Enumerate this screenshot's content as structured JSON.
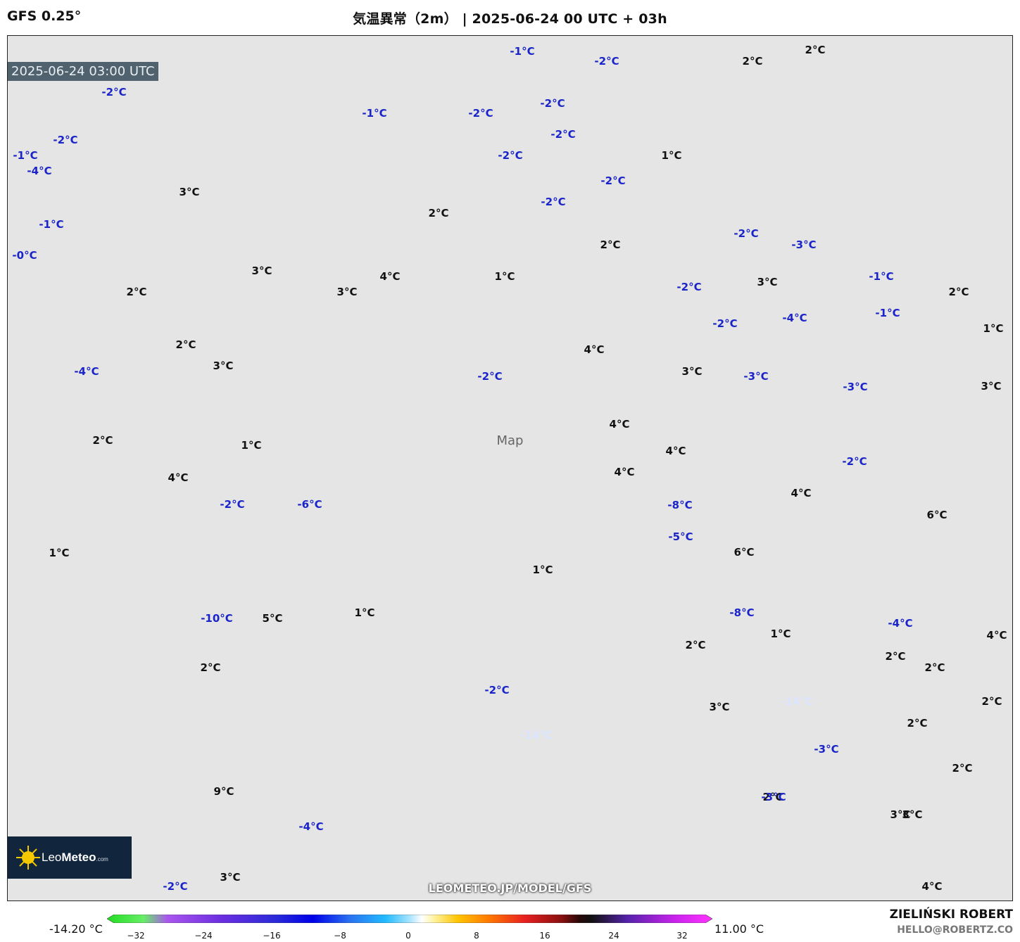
{
  "header": {
    "model": "GFS 0.25°",
    "title": "気温異常（2m） | 2025-06-24 00 UTC + 03h"
  },
  "map": {
    "valid_time": "2025-06-24 03:00 UTC",
    "placeholder": "Map",
    "labels": [
      {
        "text": "-1°C"
      },
      {
        "text": "-2°C"
      },
      {
        "text": "2°C"
      },
      {
        "text": "2°C"
      },
      {
        "text": "-2°C"
      },
      {
        "text": "-1°C"
      },
      {
        "text": "-2°C"
      },
      {
        "text": "-2°C"
      },
      {
        "text": "-2°C"
      },
      {
        "text": "-2°C"
      },
      {
        "text": "1°C"
      },
      {
        "text": "-1°C"
      },
      {
        "text": "-4°C"
      },
      {
        "text": "-2°C"
      },
      {
        "text": "-2°C"
      },
      {
        "text": "3°C"
      },
      {
        "text": "-1°C"
      },
      {
        "text": "2°C"
      },
      {
        "text": "-2°C"
      },
      {
        "text": "-0°C"
      },
      {
        "text": "2°C"
      },
      {
        "text": "-3°C"
      },
      {
        "text": "-2°C"
      },
      {
        "text": "2°C"
      },
      {
        "text": "3°C"
      },
      {
        "text": "4°C"
      },
      {
        "text": "1°C"
      },
      {
        "text": "-1°C"
      },
      {
        "text": "3°C"
      },
      {
        "text": "-2°C"
      },
      {
        "text": "2°C"
      },
      {
        "text": "3°C"
      },
      {
        "text": "1°C"
      },
      {
        "text": "-1°C"
      },
      {
        "text": "-2°C"
      },
      {
        "text": "-4°C"
      },
      {
        "text": "2°C"
      },
      {
        "text": "3°C"
      },
      {
        "text": "4°C"
      },
      {
        "text": "3°C"
      },
      {
        "text": "3°C"
      },
      {
        "text": "-4°C"
      },
      {
        "text": "-2°C"
      },
      {
        "text": "-3°C"
      },
      {
        "text": "-3°C"
      },
      {
        "text": "1°C"
      },
      {
        "text": "4°C"
      },
      {
        "text": "2°C"
      },
      {
        "text": "4°C"
      },
      {
        "text": "-2°C"
      },
      {
        "text": "4°C"
      },
      {
        "text": "4°C"
      },
      {
        "text": "4°C"
      },
      {
        "text": "-2°C"
      },
      {
        "text": "-6°C"
      },
      {
        "text": "-8°C"
      },
      {
        "text": "6°C"
      },
      {
        "text": "1°C"
      },
      {
        "text": "-5°C"
      },
      {
        "text": "6°C"
      },
      {
        "text": "1°C"
      },
      {
        "text": "1°C"
      },
      {
        "text": "-8°C"
      },
      {
        "text": "-10°C"
      },
      {
        "text": "5°C"
      },
      {
        "text": "-4°C"
      },
      {
        "text": "4°C"
      },
      {
        "text": "2°C"
      },
      {
        "text": "2°C"
      },
      {
        "text": "1°C"
      },
      {
        "text": "2°C"
      },
      {
        "text": "2°C"
      },
      {
        "text": "-2°C"
      },
      {
        "text": "2°C"
      },
      {
        "text": "-14°C"
      },
      {
        "text": "3°C"
      },
      {
        "text": "2°C"
      },
      {
        "text": "-3°C"
      },
      {
        "text": "2°C"
      },
      {
        "text": "-14°C"
      },
      {
        "text": "3°C"
      },
      {
        "text": "2°C"
      },
      {
        "text": "9°C"
      },
      {
        "text": "-3°C"
      },
      {
        "text": "3°C"
      },
      {
        "text": "-4°C"
      },
      {
        "text": "3°C"
      },
      {
        "text": "-2°C"
      },
      {
        "text": "4°C"
      }
    ],
    "logo": {
      "brand_light": "Leo",
      "brand_bold": "Meteo",
      "suffix": ".com"
    },
    "url": "LEOMETEO.JP/MODEL/GFS"
  },
  "colorbar": {
    "min_label": "-14.20 °C",
    "max_label": "11.00 °C",
    "ticks": [
      "−32",
      "−24",
      "−16",
      "−8",
      "0",
      "8",
      "16",
      "24",
      "32"
    ]
  },
  "credit": {
    "name": "ZIELIŃSKI ROBERT",
    "email": "HELLO@ROBERTZ.CO"
  }
}
